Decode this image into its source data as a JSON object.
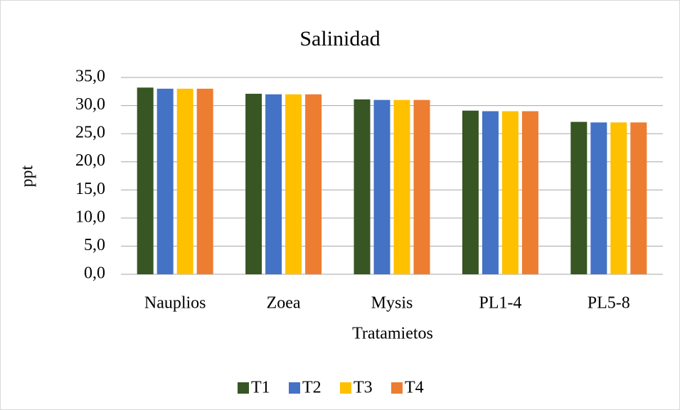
{
  "chart_data": {
    "type": "bar",
    "title": "Salinidad",
    "y_label": "ppt",
    "x_label": "Tratamietos",
    "categories": [
      "Nauplios",
      "Zoea",
      "Mysis",
      "PL1-4",
      "PL5-8"
    ],
    "series": [
      {
        "name": "T1",
        "color": "#375623",
        "values": [
          33.2,
          32.1,
          31.1,
          29.1,
          27.1
        ]
      },
      {
        "name": "T2",
        "color": "#4472c4",
        "values": [
          33.0,
          32.0,
          31.0,
          29.0,
          27.0
        ]
      },
      {
        "name": "T3",
        "color": "#ffc000",
        "values": [
          33.0,
          32.0,
          31.0,
          29.0,
          27.0
        ]
      },
      {
        "name": "T4",
        "color": "#ed7d31",
        "values": [
          33.0,
          32.0,
          31.0,
          29.0,
          27.0
        ]
      }
    ],
    "ylim": [
      0,
      35
    ],
    "yticks": [
      {
        "value": 0,
        "label": "0,0"
      },
      {
        "value": 5,
        "label": "5,0"
      },
      {
        "value": 10,
        "label": "10,0"
      },
      {
        "value": 15,
        "label": "15,0"
      },
      {
        "value": 20,
        "label": "20,0"
      },
      {
        "value": 25,
        "label": "25,0"
      },
      {
        "value": 30,
        "label": "30,0"
      },
      {
        "value": 35,
        "label": "35,0"
      }
    ],
    "grid": true,
    "legend": "bottom"
  }
}
